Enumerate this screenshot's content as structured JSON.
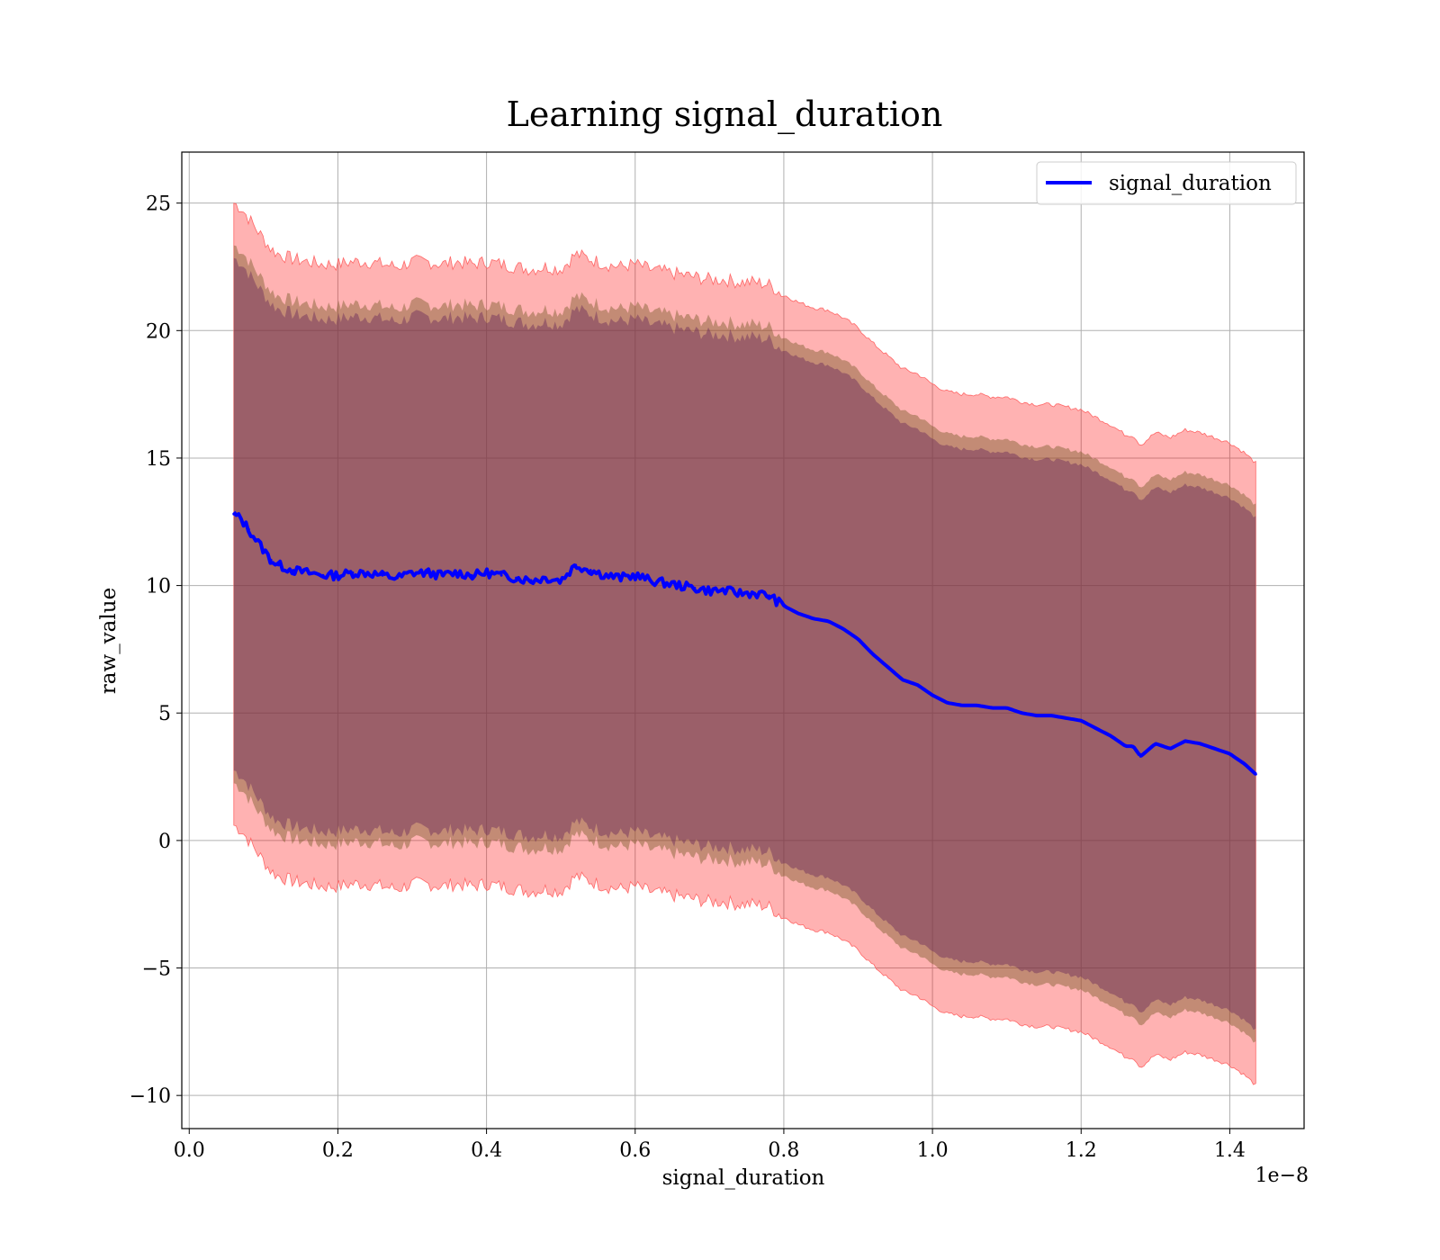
{
  "chart_data": {
    "type": "line",
    "title": "Learning signal_duration",
    "xlabel": "signal_duration",
    "ylabel": "raw_value",
    "x_offset_text": "1e−8",
    "xlim": [
      -0.01,
      1.5
    ],
    "ylim": [
      -11.3,
      27
    ],
    "x_ticks": [
      0.0,
      0.2,
      0.4,
      0.6,
      0.8,
      1.0,
      1.2,
      1.4
    ],
    "x_tick_labels": [
      "0.0",
      "0.2",
      "0.4",
      "0.6",
      "0.8",
      "1.0",
      "1.2",
      "1.4"
    ],
    "y_ticks": [
      -10,
      -5,
      0,
      5,
      10,
      15,
      20,
      25
    ],
    "y_tick_labels": [
      "−10",
      "−5",
      "0",
      "5",
      "10",
      "15",
      "20",
      "25"
    ],
    "grid": true,
    "legend_position": "top-right",
    "series": [
      {
        "name": "signal_duration",
        "color": "#0000ff",
        "x": [
          0.06,
          0.07,
          0.08,
          0.09,
          0.1,
          0.11,
          0.12,
          0.14,
          0.16,
          0.18,
          0.2,
          0.22,
          0.24,
          0.26,
          0.28,
          0.3,
          0.32,
          0.34,
          0.36,
          0.38,
          0.4,
          0.42,
          0.44,
          0.46,
          0.48,
          0.5,
          0.52,
          0.54,
          0.56,
          0.58,
          0.6,
          0.62,
          0.64,
          0.66,
          0.68,
          0.7,
          0.72,
          0.74,
          0.76,
          0.78,
          0.8,
          0.82,
          0.84,
          0.86,
          0.88,
          0.9,
          0.92,
          0.94,
          0.96,
          0.98,
          1.0,
          1.02,
          1.04,
          1.06,
          1.08,
          1.1,
          1.12,
          1.14,
          1.16,
          1.18,
          1.2,
          1.22,
          1.24,
          1.26,
          1.27,
          1.28,
          1.3,
          1.32,
          1.34,
          1.36,
          1.38,
          1.4,
          1.42,
          1.435
        ],
        "values": [
          12.8,
          12.6,
          12.2,
          11.8,
          11.4,
          11.0,
          10.8,
          10.6,
          10.5,
          10.4,
          10.4,
          10.5,
          10.5,
          10.4,
          10.3,
          10.5,
          10.5,
          10.4,
          10.5,
          10.4,
          10.5,
          10.4,
          10.3,
          10.2,
          10.3,
          10.2,
          10.8,
          10.6,
          10.4,
          10.3,
          10.4,
          10.2,
          10.1,
          10.0,
          9.9,
          9.8,
          9.8,
          9.7,
          9.7,
          9.6,
          9.2,
          8.9,
          8.7,
          8.6,
          8.3,
          7.9,
          7.3,
          6.8,
          6.3,
          6.1,
          5.7,
          5.4,
          5.3,
          5.3,
          5.2,
          5.2,
          5.0,
          4.9,
          4.9,
          4.8,
          4.7,
          4.4,
          4.1,
          3.7,
          3.7,
          3.3,
          3.8,
          3.6,
          3.9,
          3.8,
          3.6,
          3.4,
          3.0,
          2.6
        ]
      }
    ]
  }
}
